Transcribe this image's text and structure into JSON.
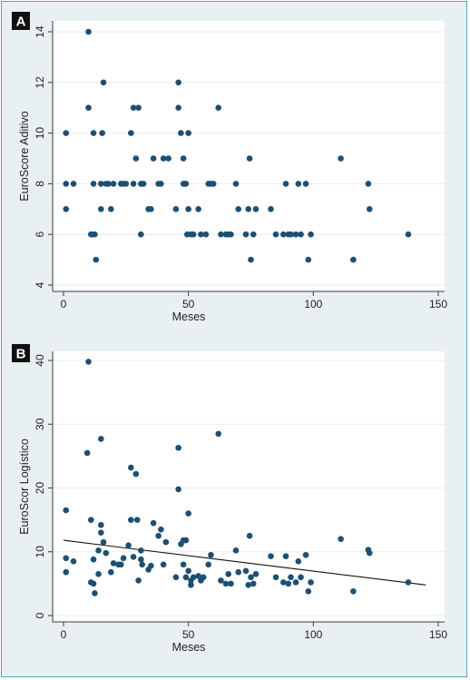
{
  "chart_data": [
    {
      "panel": "A",
      "type": "scatter",
      "xlabel": "Meses",
      "ylabel": "EuroScore Aditivo",
      "xlim": [
        0,
        150
      ],
      "ylim": [
        4,
        14
      ],
      "xticks": [
        0,
        50,
        100,
        150
      ],
      "yticks": [
        4,
        6,
        8,
        10,
        12,
        14
      ],
      "grid": true,
      "points": [
        [
          1,
          10
        ],
        [
          1,
          8
        ],
        [
          1,
          7
        ],
        [
          4,
          8
        ],
        [
          10,
          14
        ],
        [
          10,
          11
        ],
        [
          11,
          6
        ],
        [
          11.5,
          6
        ],
        [
          12,
          10
        ],
        [
          12,
          8
        ],
        [
          12.5,
          6
        ],
        [
          13,
          5
        ],
        [
          15,
          8
        ],
        [
          15,
          7
        ],
        [
          15.5,
          10
        ],
        [
          16,
          12
        ],
        [
          17,
          8
        ],
        [
          18,
          8
        ],
        [
          19,
          7
        ],
        [
          20,
          8
        ],
        [
          23,
          8
        ],
        [
          24,
          8
        ],
        [
          25,
          8
        ],
        [
          27,
          10
        ],
        [
          28,
          11
        ],
        [
          28,
          8
        ],
        [
          29,
          9
        ],
        [
          30,
          11
        ],
        [
          31,
          6
        ],
        [
          31,
          8
        ],
        [
          32,
          8
        ],
        [
          34,
          7
        ],
        [
          35,
          7
        ],
        [
          36,
          9
        ],
        [
          38,
          8
        ],
        [
          39,
          8
        ],
        [
          40,
          9
        ],
        [
          42,
          9
        ],
        [
          45,
          7
        ],
        [
          46,
          12
        ],
        [
          46,
          11
        ],
        [
          47,
          10
        ],
        [
          48,
          9
        ],
        [
          48,
          8
        ],
        [
          48.5,
          8
        ],
        [
          49,
          8
        ],
        [
          49.5,
          6
        ],
        [
          50,
          10
        ],
        [
          50,
          7
        ],
        [
          51,
          6
        ],
        [
          52,
          6
        ],
        [
          54,
          7
        ],
        [
          55,
          6
        ],
        [
          57,
          6
        ],
        [
          58,
          8
        ],
        [
          59,
          8
        ],
        [
          60,
          8
        ],
        [
          62,
          11
        ],
        [
          63,
          6
        ],
        [
          65,
          6
        ],
        [
          66,
          6
        ],
        [
          67,
          6
        ],
        [
          69,
          8
        ],
        [
          70,
          7
        ],
        [
          73,
          6
        ],
        [
          74,
          7
        ],
        [
          74.5,
          9
        ],
        [
          75,
          5
        ],
        [
          76,
          6
        ],
        [
          77,
          7
        ],
        [
          83,
          7
        ],
        [
          85,
          6
        ],
        [
          88,
          6
        ],
        [
          89,
          8
        ],
        [
          90,
          6
        ],
        [
          91,
          6
        ],
        [
          93,
          6
        ],
        [
          94,
          8
        ],
        [
          95,
          6
        ],
        [
          97,
          8
        ],
        [
          98,
          5
        ],
        [
          99,
          6
        ],
        [
          111,
          9
        ],
        [
          116,
          5
        ],
        [
          122,
          8
        ],
        [
          122.5,
          7
        ],
        [
          138,
          6
        ]
      ]
    },
    {
      "panel": "B",
      "type": "scatter",
      "xlabel": "Meses",
      "ylabel": "EuroScor Logístico",
      "xlim": [
        0,
        150
      ],
      "ylim": [
        0,
        40
      ],
      "xticks": [
        0,
        50,
        100,
        150
      ],
      "yticks": [
        0,
        10,
        20,
        30,
        40
      ],
      "grid": true,
      "trendline": {
        "x": [
          0,
          145
        ],
        "y": [
          11.8,
          4.8
        ]
      },
      "points": [
        [
          1,
          16.5
        ],
        [
          1,
          9
        ],
        [
          1,
          6.8
        ],
        [
          4,
          8.5
        ],
        [
          10,
          39.8
        ],
        [
          9.5,
          25.5
        ],
        [
          11,
          15
        ],
        [
          11,
          5.2
        ],
        [
          12,
          5
        ],
        [
          12,
          8.8
        ],
        [
          12.5,
          3.5
        ],
        [
          14,
          6.5
        ],
        [
          14,
          10.2
        ],
        [
          15,
          27.7
        ],
        [
          15,
          14.2
        ],
        [
          15,
          13
        ],
        [
          16,
          11.5
        ],
        [
          17,
          9.8
        ],
        [
          19,
          6.8
        ],
        [
          20,
          8.2
        ],
        [
          22,
          8
        ],
        [
          23,
          8
        ],
        [
          24,
          9
        ],
        [
          26,
          11
        ],
        [
          27,
          23.2
        ],
        [
          27,
          15
        ],
        [
          28,
          9.2
        ],
        [
          29,
          22.2
        ],
        [
          29.5,
          15
        ],
        [
          30,
          5.5
        ],
        [
          31,
          10.2
        ],
        [
          31,
          8.8
        ],
        [
          31.5,
          8
        ],
        [
          34,
          7.2
        ],
        [
          35,
          7.8
        ],
        [
          36,
          14.5
        ],
        [
          38,
          12.5
        ],
        [
          39,
          13.5
        ],
        [
          40,
          8
        ],
        [
          41,
          11.5
        ],
        [
          45,
          6
        ],
        [
          46,
          26.3
        ],
        [
          46,
          19.8
        ],
        [
          47,
          11.2
        ],
        [
          48,
          11.8
        ],
        [
          48,
          8
        ],
        [
          49,
          11.8
        ],
        [
          49,
          6
        ],
        [
          50,
          16
        ],
        [
          50,
          7
        ],
        [
          51,
          5.5
        ],
        [
          51,
          4.8
        ],
        [
          52,
          6
        ],
        [
          54,
          6.2
        ],
        [
          55,
          5.5
        ],
        [
          56,
          6
        ],
        [
          58,
          8
        ],
        [
          59,
          9.5
        ],
        [
          62,
          28.5
        ],
        [
          63,
          5.5
        ],
        [
          65,
          5
        ],
        [
          66,
          6.5
        ],
        [
          67,
          5
        ],
        [
          69,
          10.2
        ],
        [
          70,
          6.8
        ],
        [
          73,
          7
        ],
        [
          74,
          4.8
        ],
        [
          74.5,
          12.5
        ],
        [
          75,
          6
        ],
        [
          76,
          5
        ],
        [
          77,
          6.5
        ],
        [
          83,
          9.3
        ],
        [
          85,
          6
        ],
        [
          88,
          5.2
        ],
        [
          89,
          9.3
        ],
        [
          90,
          5
        ],
        [
          91,
          6
        ],
        [
          93,
          5.2
        ],
        [
          94,
          8.5
        ],
        [
          95,
          6
        ],
        [
          97,
          9.5
        ],
        [
          98,
          3.8
        ],
        [
          99,
          5.2
        ],
        [
          111,
          12
        ],
        [
          116,
          3.8
        ],
        [
          122,
          10.3
        ],
        [
          122.5,
          9.8
        ],
        [
          138,
          5.2
        ]
      ]
    }
  ],
  "panels": [
    {
      "badge": "A",
      "xlabel": "Meses",
      "ylabel": "EuroScore Aditivo",
      "xtick_labels": [
        "0",
        "50",
        "100",
        "150"
      ],
      "ytick_labels": [
        "4",
        "6",
        "8",
        "10",
        "12",
        "14"
      ]
    },
    {
      "badge": "B",
      "xlabel": "Meses",
      "ylabel": "EuroScor Logístico",
      "xtick_labels": [
        "0",
        "50",
        "100",
        "150"
      ],
      "ytick_labels": [
        "0",
        "10",
        "20",
        "30",
        "40"
      ]
    }
  ],
  "colors": {
    "point": "#1d4f72",
    "panel_background": "#e9f0f3",
    "plot_background": "#ffffff",
    "frame_border": "#5aa0bd",
    "badge": "#111111"
  }
}
